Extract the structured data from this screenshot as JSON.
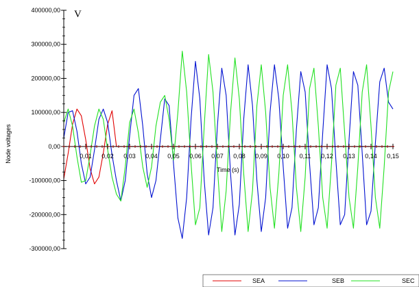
{
  "chart_data": {
    "type": "line",
    "title": "",
    "unit": "V",
    "xlabel": "Time (s)",
    "ylabel": "Node voltages",
    "xlim": [
      0,
      0.15
    ],
    "ylim": [
      -300000,
      400000
    ],
    "x_ticks": [
      "0,01",
      "0,02",
      "0,03",
      "0,04",
      "0,05",
      "0,06",
      "0,07",
      "0,08",
      "0,09",
      "0,10",
      "0,11",
      "0,12",
      "0,13",
      "0,14",
      "0,15"
    ],
    "x_tick_values": [
      0.01,
      0.02,
      0.03,
      0.04,
      0.05,
      0.06,
      0.07,
      0.08,
      0.09,
      0.1,
      0.11,
      0.12,
      0.13,
      0.14,
      0.15
    ],
    "y_ticks": [
      "400000,00",
      "300000,00",
      "200000,00",
      "100000,00",
      "0,00",
      "-100000,00",
      "-200000,00",
      "-300000,00"
    ],
    "y_tick_values": [
      400000,
      300000,
      200000,
      100000,
      0,
      -100000,
      -200000,
      -300000
    ],
    "legend_position": "bottom-right",
    "series": [
      {
        "name": "SEA",
        "color": "#e00000",
        "x": [
          0,
          0.002,
          0.004,
          0.006,
          0.008,
          0.01,
          0.012,
          0.014,
          0.016,
          0.018,
          0.02,
          0.022,
          0.024,
          0.026,
          0.03,
          0.06,
          0.09,
          0.12,
          0.15
        ],
        "y": [
          -95000,
          -20000,
          65000,
          110000,
          90000,
          20000,
          -65000,
          -110000,
          -90000,
          -20000,
          65000,
          105000,
          0,
          0,
          0,
          0,
          0,
          0,
          0
        ]
      },
      {
        "name": "SEB",
        "color": "#0010d0",
        "x": [
          0,
          0.002,
          0.004,
          0.006,
          0.008,
          0.01,
          0.012,
          0.014,
          0.016,
          0.018,
          0.02,
          0.022,
          0.024,
          0.026,
          0.028,
          0.03,
          0.032,
          0.034,
          0.036,
          0.038,
          0.04,
          0.042,
          0.044,
          0.046,
          0.048,
          0.05,
          0.052,
          0.054,
          0.056,
          0.058,
          0.06,
          0.062,
          0.064,
          0.066,
          0.068,
          0.07,
          0.072,
          0.074,
          0.076,
          0.078,
          0.08,
          0.082,
          0.084,
          0.086,
          0.088,
          0.09,
          0.092,
          0.094,
          0.096,
          0.098,
          0.1,
          0.102,
          0.104,
          0.106,
          0.108,
          0.11,
          0.112,
          0.114,
          0.116,
          0.118,
          0.12,
          0.122,
          0.124,
          0.126,
          0.128,
          0.13,
          0.132,
          0.134,
          0.136,
          0.138,
          0.14,
          0.142,
          0.144,
          0.146,
          0.148,
          0.15
        ],
        "y": [
          25000,
          100000,
          105000,
          45000,
          -50000,
          -110000,
          -90000,
          -10000,
          80000,
          110000,
          70000,
          -25000,
          -100000,
          -160000,
          -100000,
          30000,
          150000,
          170000,
          60000,
          -80000,
          -150000,
          -100000,
          20000,
          140000,
          120000,
          -50000,
          -210000,
          -270000,
          -150000,
          80000,
          250000,
          140000,
          -100000,
          -260000,
          -180000,
          60000,
          230000,
          150000,
          -80000,
          -260000,
          -170000,
          80000,
          240000,
          120000,
          -100000,
          -250000,
          -150000,
          100000,
          240000,
          140000,
          -60000,
          -240000,
          -180000,
          50000,
          220000,
          160000,
          -50000,
          -230000,
          -180000,
          40000,
          240000,
          170000,
          -40000,
          -230000,
          -200000,
          20000,
          220000,
          180000,
          -20000,
          -230000,
          -190000,
          10000,
          190000,
          230000,
          130000,
          110000
        ]
      },
      {
        "name": "SEC",
        "color": "#20e020",
        "x": [
          0,
          0.002,
          0.004,
          0.006,
          0.008,
          0.01,
          0.012,
          0.014,
          0.016,
          0.018,
          0.02,
          0.022,
          0.024,
          0.026,
          0.028,
          0.03,
          0.032,
          0.034,
          0.036,
          0.038,
          0.04,
          0.042,
          0.044,
          0.046,
          0.048,
          0.05,
          0.052,
          0.054,
          0.056,
          0.058,
          0.06,
          0.062,
          0.064,
          0.066,
          0.068,
          0.07,
          0.072,
          0.074,
          0.076,
          0.078,
          0.08,
          0.082,
          0.084,
          0.086,
          0.088,
          0.09,
          0.092,
          0.094,
          0.096,
          0.098,
          0.1,
          0.102,
          0.104,
          0.106,
          0.108,
          0.11,
          0.112,
          0.114,
          0.116,
          0.118,
          0.12,
          0.122,
          0.124,
          0.126,
          0.128,
          0.13,
          0.132,
          0.134,
          0.136,
          0.138,
          0.14,
          0.142,
          0.144,
          0.146,
          0.148,
          0.15
        ],
        "y": [
          70000,
          110000,
          60000,
          -30000,
          -105000,
          -100000,
          -25000,
          60000,
          110000,
          80000,
          -10000,
          -90000,
          -140000,
          -160000,
          -60000,
          70000,
          110000,
          40000,
          -60000,
          -120000,
          -60000,
          60000,
          130000,
          150000,
          80000,
          -40000,
          100000,
          280000,
          160000,
          -50000,
          -230000,
          -180000,
          60000,
          270000,
          160000,
          -60000,
          -250000,
          -130000,
          100000,
          260000,
          140000,
          -80000,
          -250000,
          -130000,
          120000,
          240000,
          100000,
          -120000,
          -240000,
          -80000,
          150000,
          240000,
          100000,
          -120000,
          -250000,
          -90000,
          170000,
          230000,
          60000,
          -150000,
          -240000,
          -50000,
          180000,
          230000,
          40000,
          -150000,
          -240000,
          -60000,
          160000,
          240000,
          60000,
          -150000,
          -240000,
          -60000,
          160000,
          220000
        ]
      }
    ]
  }
}
